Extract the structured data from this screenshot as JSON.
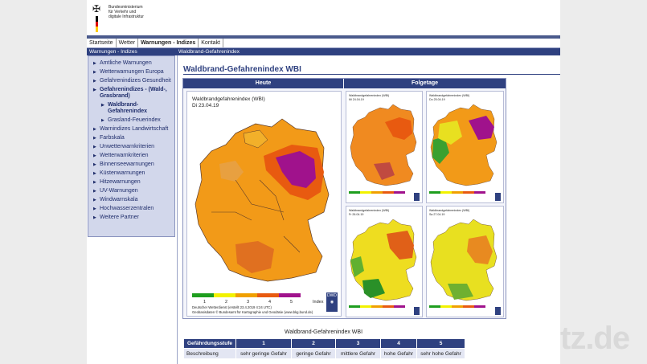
{
  "header": {
    "ministry_line1": "Bundesministerium",
    "ministry_line2": "für Verkehr und",
    "ministry_line3": "digitale Infrastruktur",
    "colors": {
      "flag_black": "#000000",
      "flag_red": "#dd0000",
      "flag_gold": "#ffce00"
    }
  },
  "nav": {
    "items": [
      {
        "label": "Startseite"
      },
      {
        "label": "Wetter"
      },
      {
        "label": "Warnungen - Indizes"
      },
      {
        "label": "Kontakt"
      }
    ]
  },
  "section_headers": {
    "sidebar_title": "Warnungen - Indizes",
    "content_title": "Waldbrand-Gefahrenindex"
  },
  "sidebar": {
    "items": [
      {
        "label": "Amtliche Warnungen"
      },
      {
        "label": "Wetterwarnungen Europa"
      },
      {
        "label": "Gefahrenindizes Gesundheit"
      },
      {
        "label": "Gefahrenindizes - (Wald-, Grasbrand)"
      },
      {
        "label": "Waldbrand-Gefahrenindex"
      },
      {
        "label": "Grasland-Feuerindex"
      },
      {
        "label": "Warnindizes Landwirtschaft"
      },
      {
        "label": "Farbskala"
      },
      {
        "label": "Unwetterwarnkriterien"
      },
      {
        "label": "Wetterwarnkriterien"
      },
      {
        "label": "Binnenseewarnungen"
      },
      {
        "label": "Küstenwarnungen"
      },
      {
        "label": "Hitzewarnungen"
      },
      {
        "label": "UV-Warnungen"
      },
      {
        "label": "Windwarnskala"
      },
      {
        "label": "Hochwasserzentralen"
      },
      {
        "label": "Weitere Partner"
      }
    ]
  },
  "main": {
    "page_title": "Waldbrand-Gefahrenindex WBI",
    "col_today": "Heute",
    "col_next": "Folgetage",
    "big_map": {
      "title": "Waldbrandgefahrenindex (WBI)",
      "date": "Di 23.04.19",
      "legend_numbers": [
        "1",
        "2",
        "3",
        "4",
        "5"
      ],
      "legend_label": "Index",
      "footer1": "Deutscher Wetterdienst (erstellt 23.4.2019 4:24 UTC)",
      "footer2": "Geobasisdaten © Bundesamt für Kartographie und Geodäsie (www.bkg.bund.de)",
      "dwd_logo": "DWD"
    },
    "small_maps": [
      {
        "title": "Waldbrandgefahrenindex (WBI)",
        "date": "Mi 24.04.19"
      },
      {
        "title": "Waldbrandgefahrenindex (WBI)",
        "date": "Do 25.04.19"
      },
      {
        "title": "Waldbrandgefahrenindex (WBI)",
        "date": "Fr 26.04.19"
      },
      {
        "title": "Waldbrandgefahrenindex (WBI)",
        "date": "Sa 27.04.19"
      }
    ],
    "scale_colors": [
      "#1e9e1e",
      "#f2f200",
      "#f0a000",
      "#e85a10",
      "#a0128c"
    ]
  },
  "hazard_table": {
    "title": "Waldbrand-Gefahrenindex WBI",
    "header": [
      "Gefährdungsstufe",
      "1",
      "2",
      "3",
      "4",
      "5"
    ],
    "row": [
      "Beschreibung",
      "sehr geringe Gefahr",
      "geringe Gefahr",
      "mittlere Gefahr",
      "hohe Gefahr",
      "sehr hohe Gefahr"
    ]
  },
  "watermark": "tz.de"
}
